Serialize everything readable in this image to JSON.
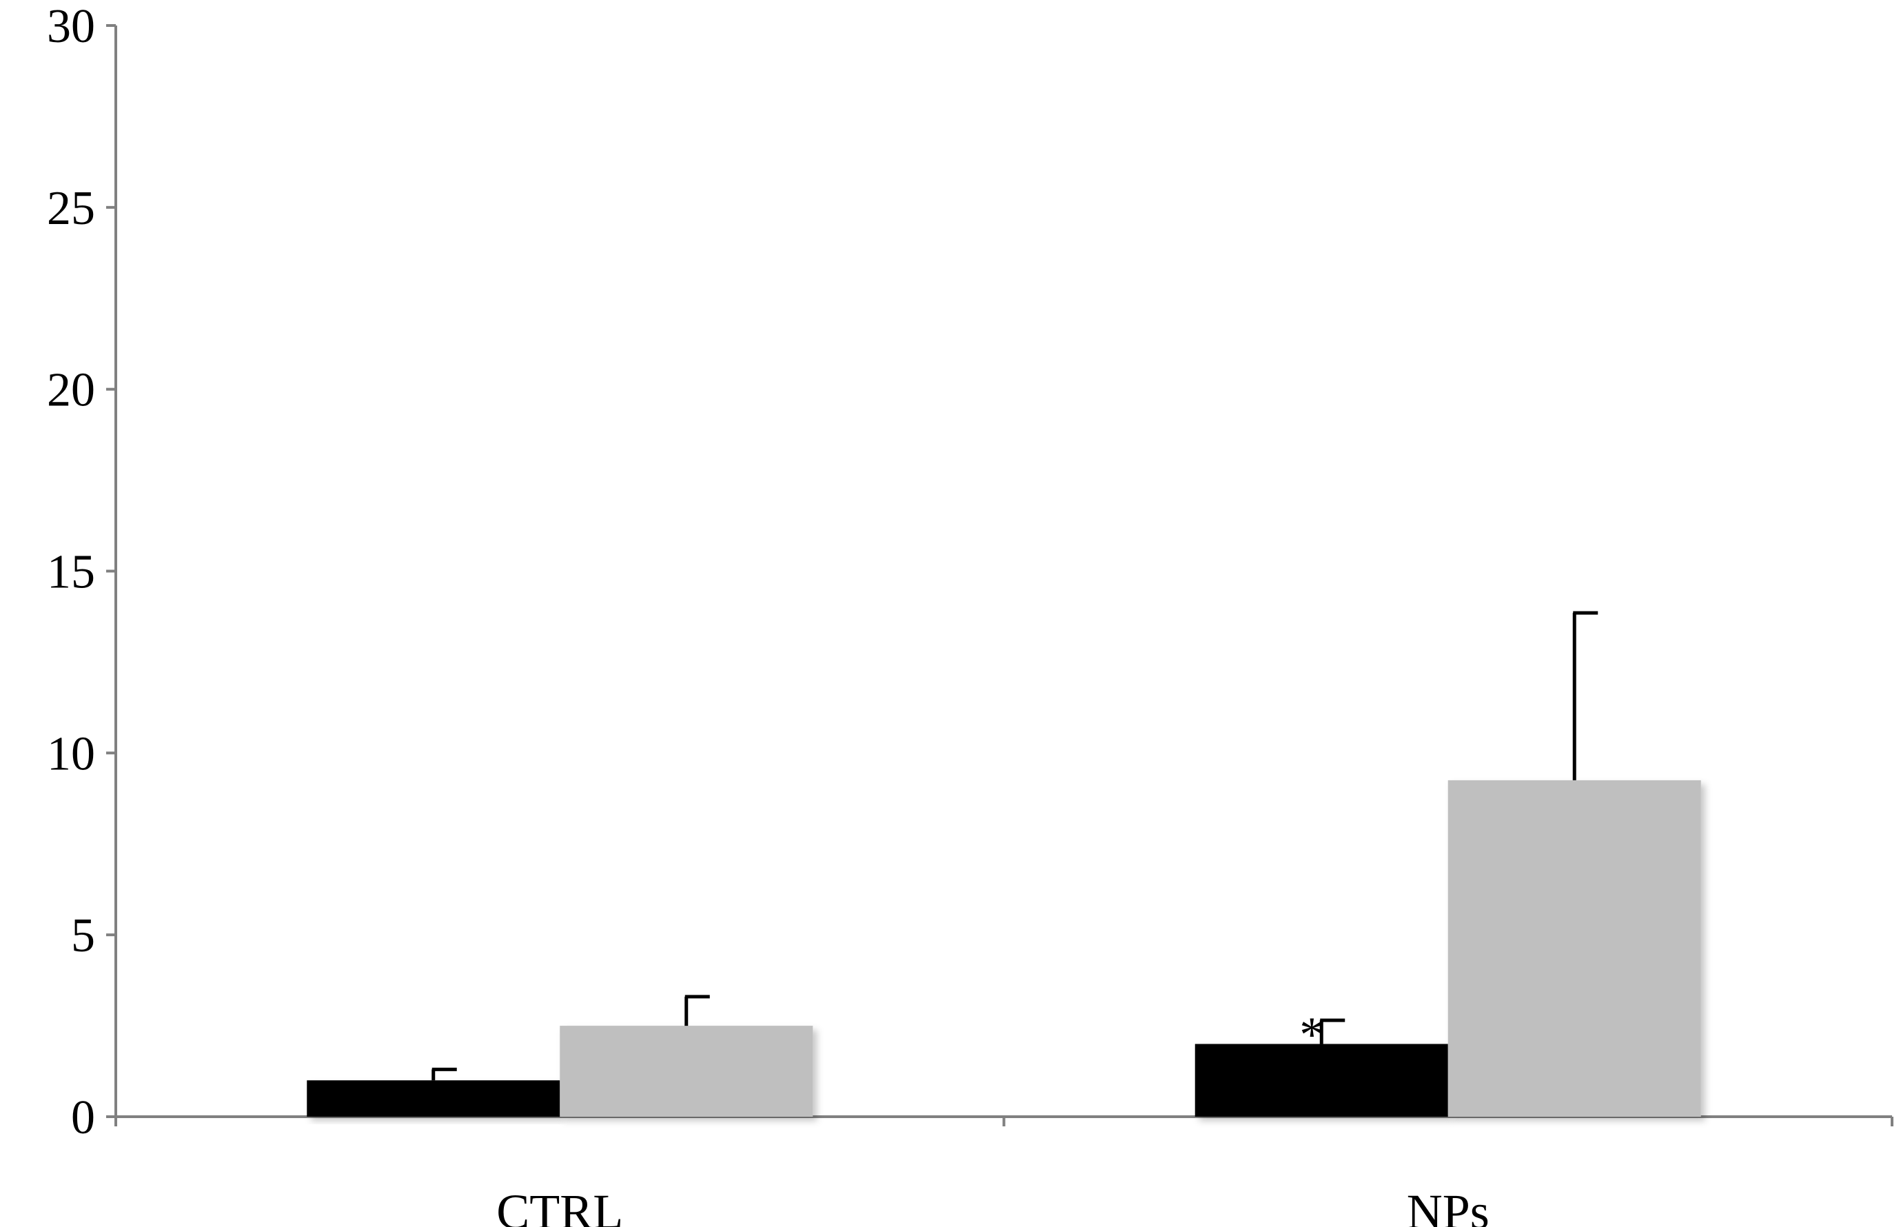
{
  "chart_data": {
    "type": "bar",
    "title": "",
    "xlabel": "",
    "ylabel": "",
    "ylim": [
      0,
      30
    ],
    "yticks": [
      0,
      5,
      10,
      15,
      20,
      25,
      30
    ],
    "yticks_labels": [
      "0",
      "5",
      "10",
      "15",
      "20",
      "25",
      "30"
    ],
    "categories": [
      "CTRL",
      "NPs"
    ],
    "series": [
      {
        "color": "#000000",
        "values": [
          1.0,
          2.0
        ],
        "errors": [
          0.3,
          0.65
        ]
      },
      {
        "color": "#bfbfbf",
        "values": [
          2.5,
          9.25
        ],
        "errors": [
          0.8,
          4.6
        ]
      }
    ],
    "annotations": [
      {
        "category": "NPs",
        "series": 0,
        "text": "*"
      }
    ],
    "grid": false,
    "legend": "none",
    "colors": {
      "axis": "#808080",
      "error_bar": "#000000"
    }
  }
}
